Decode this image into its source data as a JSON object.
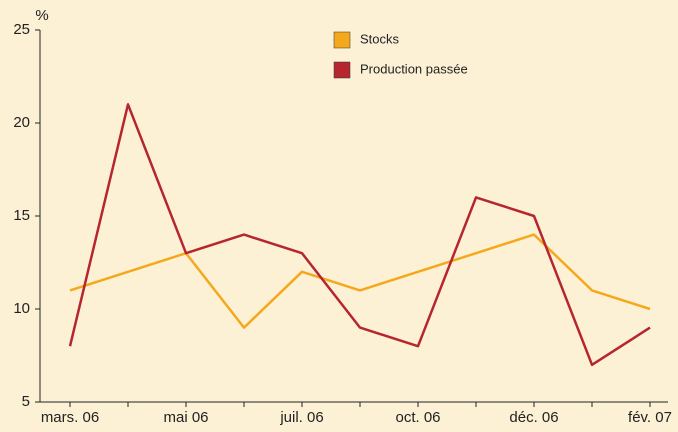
{
  "chart_data": {
    "type": "line",
    "y_label": "%",
    "categories": [
      "mars. 06",
      null,
      "mai 06",
      null,
      "juil. 06",
      null,
      "oct. 06",
      null,
      "déc. 06",
      null,
      "fév. 07"
    ],
    "series": [
      {
        "name": "Stocks",
        "color": "#f5a81c",
        "values": [
          11,
          12,
          13,
          9,
          12,
          11,
          12,
          13,
          14,
          11,
          10
        ]
      },
      {
        "name": "Production passée",
        "color": "#b5262e",
        "values": [
          8,
          21,
          13,
          14,
          13,
          9,
          8,
          16,
          15,
          7,
          9
        ]
      }
    ],
    "ylim": [
      5,
      25
    ],
    "yticks": [
      5,
      10,
      15,
      20,
      25
    ],
    "grid": false,
    "legend": "top"
  }
}
